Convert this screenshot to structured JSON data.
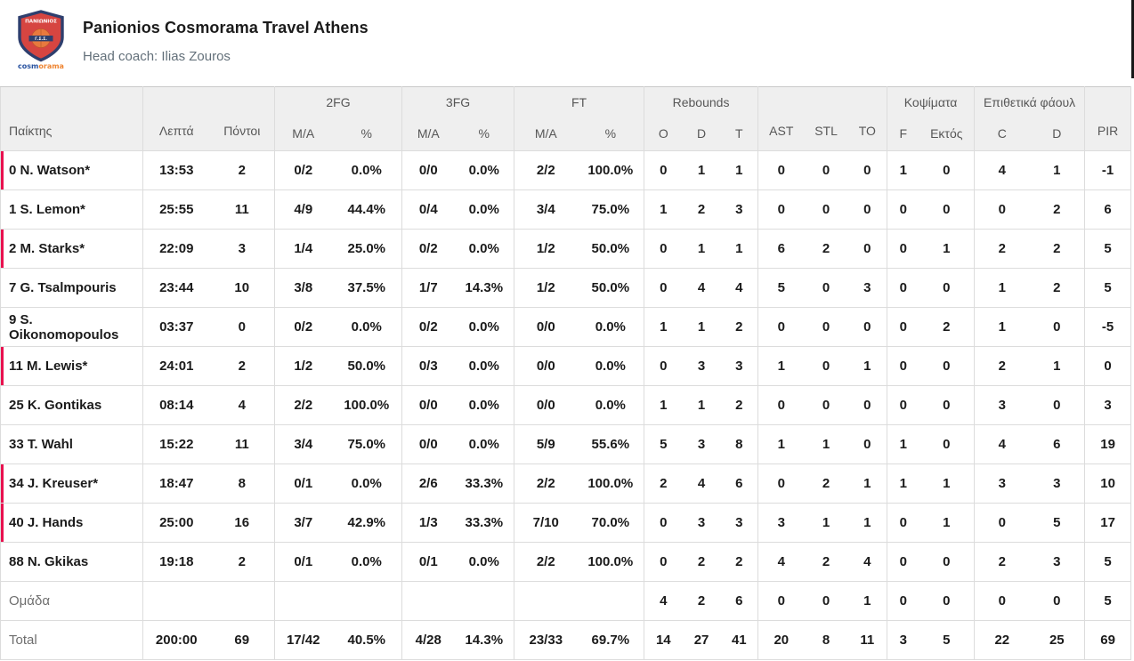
{
  "team_header": {
    "title": "Panionios Cosmorama Travel Athens",
    "coach_line": "Head coach: Ilias Zouros",
    "logo": {
      "shield_text": "ΠΑΝΙΩΝΙΟΣ",
      "ball_band_text": "Γ.Σ.Σ.",
      "brand_left": "cosm",
      "brand_right": "orama"
    }
  },
  "colors": {
    "accent_red": "#e8114f",
    "header_bg": "#efefef",
    "header_text": "#575757",
    "border": "#dcdcdc",
    "text": "#1b1b1b",
    "muted": "#6e6e6e"
  },
  "table": {
    "groups": {
      "fg2": "2FG",
      "fg3": "3FG",
      "ft": "FT",
      "rebounds": "Rebounds",
      "blocks": "Κοψίματα",
      "off_fouls": "Επιθετικά φάουλ"
    },
    "columns": {
      "player": "Παίκτης",
      "minutes": "Λεπτά",
      "points": "Πόντοι",
      "ma": "M/A",
      "pct": "%",
      "o": "O",
      "d": "D",
      "t": "T",
      "ast": "AST",
      "stl": "STL",
      "to": "TO",
      "f": "F",
      "ektos": "Εκτός",
      "c": "C",
      "d2": "D",
      "pir": "PIR"
    },
    "group_start_indices": [
      0,
      2,
      4,
      6,
      8,
      11,
      14,
      16,
      18
    ],
    "rows": [
      {
        "name": "0 N. Watson*",
        "on_court_marker": true,
        "muted": false,
        "cells": [
          "13:53",
          "2",
          "0/2",
          "0.0%",
          "0/0",
          "0.0%",
          "2/2",
          "100.0%",
          "0",
          "1",
          "1",
          "0",
          "0",
          "0",
          "1",
          "0",
          "4",
          "1",
          "-1"
        ]
      },
      {
        "name": "1 S. Lemon*",
        "on_court_marker": false,
        "muted": false,
        "cells": [
          "25:55",
          "11",
          "4/9",
          "44.4%",
          "0/4",
          "0.0%",
          "3/4",
          "75.0%",
          "1",
          "2",
          "3",
          "0",
          "0",
          "0",
          "0",
          "0",
          "0",
          "2",
          "6"
        ]
      },
      {
        "name": "2 M. Starks*",
        "on_court_marker": true,
        "muted": false,
        "cells": [
          "22:09",
          "3",
          "1/4",
          "25.0%",
          "0/2",
          "0.0%",
          "1/2",
          "50.0%",
          "0",
          "1",
          "1",
          "6",
          "2",
          "0",
          "0",
          "1",
          "2",
          "2",
          "5"
        ]
      },
      {
        "name": "7 G. Tsalmpouris",
        "on_court_marker": false,
        "muted": false,
        "cells": [
          "23:44",
          "10",
          "3/8",
          "37.5%",
          "1/7",
          "14.3%",
          "1/2",
          "50.0%",
          "0",
          "4",
          "4",
          "5",
          "0",
          "3",
          "0",
          "0",
          "1",
          "2",
          "5"
        ]
      },
      {
        "name": "9 S. Oikonomopoulos",
        "on_court_marker": false,
        "muted": false,
        "cells": [
          "03:37",
          "0",
          "0/2",
          "0.0%",
          "0/2",
          "0.0%",
          "0/0",
          "0.0%",
          "1",
          "1",
          "2",
          "0",
          "0",
          "0",
          "0",
          "2",
          "1",
          "0",
          "-5"
        ]
      },
      {
        "name": "11 M. Lewis*",
        "on_court_marker": true,
        "muted": false,
        "cells": [
          "24:01",
          "2",
          "1/2",
          "50.0%",
          "0/3",
          "0.0%",
          "0/0",
          "0.0%",
          "0",
          "3",
          "3",
          "1",
          "0",
          "1",
          "0",
          "0",
          "2",
          "1",
          "0"
        ]
      },
      {
        "name": "25 K. Gontikas",
        "on_court_marker": false,
        "muted": false,
        "cells": [
          "08:14",
          "4",
          "2/2",
          "100.0%",
          "0/0",
          "0.0%",
          "0/0",
          "0.0%",
          "1",
          "1",
          "2",
          "0",
          "0",
          "0",
          "0",
          "0",
          "3",
          "0",
          "3"
        ]
      },
      {
        "name": "33 T. Wahl",
        "on_court_marker": false,
        "muted": false,
        "cells": [
          "15:22",
          "11",
          "3/4",
          "75.0%",
          "0/0",
          "0.0%",
          "5/9",
          "55.6%",
          "5",
          "3",
          "8",
          "1",
          "1",
          "0",
          "1",
          "0",
          "4",
          "6",
          "19"
        ]
      },
      {
        "name": "34 J. Kreuser*",
        "on_court_marker": true,
        "muted": false,
        "cells": [
          "18:47",
          "8",
          "0/1",
          "0.0%",
          "2/6",
          "33.3%",
          "2/2",
          "100.0%",
          "2",
          "4",
          "6",
          "0",
          "2",
          "1",
          "1",
          "1",
          "3",
          "3",
          "10"
        ]
      },
      {
        "name": "40 J. Hands",
        "on_court_marker": true,
        "muted": false,
        "cells": [
          "25:00",
          "16",
          "3/7",
          "42.9%",
          "1/3",
          "33.3%",
          "7/10",
          "70.0%",
          "0",
          "3",
          "3",
          "3",
          "1",
          "1",
          "0",
          "1",
          "0",
          "5",
          "17"
        ]
      },
      {
        "name": "88 N. Gkikas",
        "on_court_marker": false,
        "muted": false,
        "cells": [
          "19:18",
          "2",
          "0/1",
          "0.0%",
          "0/1",
          "0.0%",
          "2/2",
          "100.0%",
          "0",
          "2",
          "2",
          "4",
          "2",
          "4",
          "0",
          "0",
          "2",
          "3",
          "5"
        ]
      },
      {
        "name": "Ομάδα",
        "on_court_marker": false,
        "muted": true,
        "cells": [
          "",
          "",
          "",
          "",
          "",
          "",
          "",
          "",
          "4",
          "2",
          "6",
          "0",
          "0",
          "1",
          "0",
          "0",
          "0",
          "0",
          "5"
        ]
      },
      {
        "name": "Total",
        "on_court_marker": false,
        "muted": true,
        "cells": [
          "200:00",
          "69",
          "17/42",
          "40.5%",
          "4/28",
          "14.3%",
          "23/33",
          "69.7%",
          "14",
          "27",
          "41",
          "20",
          "8",
          "11",
          "3",
          "5",
          "22",
          "25",
          "69"
        ]
      }
    ]
  }
}
